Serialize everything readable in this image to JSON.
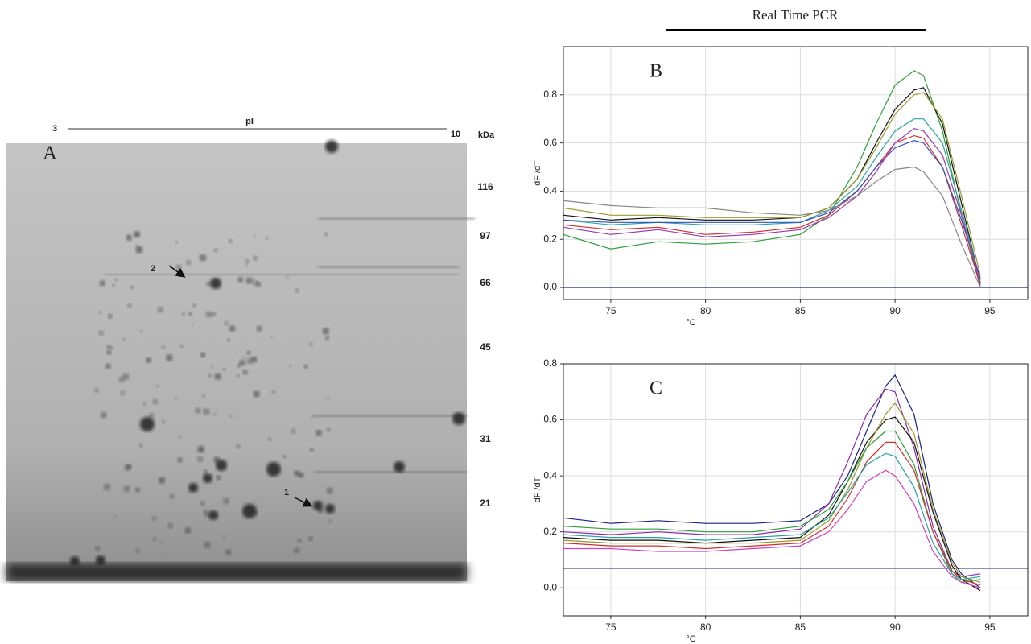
{
  "title": "Real Time PCR",
  "gel": {
    "panel": "A",
    "pi_label": "pI",
    "pi_start": 3,
    "pi_end": 10,
    "unit": "kDa",
    "markers": [
      116,
      97,
      66,
      45,
      31,
      21
    ],
    "arrows": [
      "1",
      "2"
    ]
  },
  "chart_data": [
    {
      "type": "line",
      "panel": "B",
      "x_label": "°C",
      "y_label": "dF /dT",
      "x": [
        72.5,
        75,
        77.5,
        80,
        82.5,
        85,
        86.5,
        88,
        89,
        90,
        91,
        91.5,
        92.5,
        93.5,
        94.5
      ],
      "series": [
        {
          "color": "#2e9e3a",
          "values": [
            0.22,
            0.16,
            0.19,
            0.18,
            0.19,
            0.22,
            0.3,
            0.5,
            0.68,
            0.84,
            0.9,
            0.88,
            0.65,
            0.3,
            0.0
          ]
        },
        {
          "color": "#111111",
          "values": [
            0.3,
            0.28,
            0.29,
            0.28,
            0.28,
            0.29,
            0.33,
            0.45,
            0.6,
            0.74,
            0.82,
            0.83,
            0.68,
            0.35,
            0.02
          ]
        },
        {
          "color": "#9a9a2a",
          "values": [
            0.33,
            0.3,
            0.3,
            0.29,
            0.29,
            0.29,
            0.33,
            0.45,
            0.58,
            0.72,
            0.8,
            0.81,
            0.7,
            0.38,
            0.05
          ]
        },
        {
          "color": "#2aa3a3",
          "values": [
            0.28,
            0.26,
            0.27,
            0.26,
            0.26,
            0.27,
            0.32,
            0.42,
            0.54,
            0.65,
            0.7,
            0.7,
            0.6,
            0.32,
            0.03
          ]
        },
        {
          "color": "#d03030",
          "values": [
            0.26,
            0.24,
            0.25,
            0.22,
            0.23,
            0.25,
            0.3,
            0.4,
            0.5,
            0.6,
            0.63,
            0.62,
            0.5,
            0.26,
            0.01
          ]
        },
        {
          "color": "#3050c0",
          "values": [
            0.28,
            0.27,
            0.27,
            0.27,
            0.27,
            0.27,
            0.31,
            0.4,
            0.5,
            0.58,
            0.61,
            0.6,
            0.5,
            0.28,
            0.04
          ]
        },
        {
          "color": "#9a3ab0",
          "values": [
            0.25,
            0.22,
            0.24,
            0.21,
            0.22,
            0.24,
            0.29,
            0.38,
            0.48,
            0.6,
            0.66,
            0.65,
            0.55,
            0.3,
            0.02
          ]
        },
        {
          "color": "#888888",
          "values": [
            0.36,
            0.34,
            0.33,
            0.33,
            0.31,
            0.3,
            0.32,
            0.38,
            0.44,
            0.49,
            0.5,
            0.48,
            0.38,
            0.18,
            0.0
          ]
        }
      ],
      "xlim": [
        72.5,
        97.0
      ],
      "ylim": [
        -0.05,
        1.0
      ],
      "xticks": [
        75,
        80,
        85,
        90,
        95
      ],
      "yticks": [
        {
          "value": 0,
          "label": "0.0"
        },
        0.2,
        0.4,
        0.6,
        0.8
      ],
      "threshold": 0,
      "threshold_color": "#1a237e",
      "grid": true
    },
    {
      "type": "line",
      "panel": "C",
      "x_label": "°C",
      "y_label": "dF /dT",
      "x": [
        72.5,
        75,
        77.5,
        80,
        82.5,
        85,
        86.5,
        87.5,
        88.5,
        89.5,
        90,
        91,
        92,
        93,
        93.5,
        94.5
      ],
      "series": [
        {
          "color": "#1a237e",
          "values": [
            0.25,
            0.23,
            0.24,
            0.23,
            0.23,
            0.24,
            0.3,
            0.4,
            0.56,
            0.72,
            0.76,
            0.62,
            0.3,
            0.1,
            0.05,
            0.0
          ]
        },
        {
          "color": "#8a2ab0",
          "values": [
            0.2,
            0.19,
            0.2,
            0.19,
            0.19,
            0.21,
            0.3,
            0.45,
            0.62,
            0.71,
            0.7,
            0.5,
            0.22,
            0.06,
            0.04,
            0.05
          ]
        },
        {
          "color": "#111111",
          "values": [
            0.18,
            0.17,
            0.17,
            0.16,
            0.17,
            0.18,
            0.26,
            0.38,
            0.52,
            0.6,
            0.61,
            0.52,
            0.27,
            0.08,
            0.03,
            -0.01
          ]
        },
        {
          "color": "#9a9a2a",
          "values": [
            0.17,
            0.16,
            0.16,
            0.16,
            0.16,
            0.17,
            0.24,
            0.35,
            0.5,
            0.62,
            0.66,
            0.55,
            0.28,
            0.09,
            0.04,
            0.02
          ]
        },
        {
          "color": "#2e9e3a",
          "values": [
            0.22,
            0.21,
            0.21,
            0.2,
            0.2,
            0.22,
            0.28,
            0.38,
            0.5,
            0.56,
            0.56,
            0.44,
            0.2,
            0.05,
            0.02,
            0.03
          ]
        },
        {
          "color": "#d03030",
          "values": [
            0.16,
            0.15,
            0.15,
            0.14,
            0.15,
            0.16,
            0.22,
            0.32,
            0.45,
            0.52,
            0.52,
            0.42,
            0.2,
            0.06,
            0.03,
            0.01
          ]
        },
        {
          "color": "#2aa3a3",
          "values": [
            0.19,
            0.18,
            0.18,
            0.17,
            0.18,
            0.19,
            0.25,
            0.34,
            0.44,
            0.48,
            0.47,
            0.36,
            0.16,
            0.05,
            0.03,
            0.04
          ]
        },
        {
          "color": "#d040c0",
          "values": [
            0.14,
            0.14,
            0.13,
            0.13,
            0.14,
            0.15,
            0.2,
            0.28,
            0.38,
            0.42,
            0.4,
            0.3,
            0.13,
            0.04,
            0.02,
            0.0
          ]
        }
      ],
      "xlim": [
        72.5,
        97.0
      ],
      "ylim": [
        -0.1,
        0.8
      ],
      "xticks": [
        75,
        80,
        85,
        90,
        95
      ],
      "yticks": [
        {
          "value": 0,
          "label": "0.0"
        },
        0.2,
        0.4,
        0.6,
        0.8
      ],
      "threshold": 0.07,
      "threshold_color": "#1a237e",
      "grid": true
    }
  ]
}
